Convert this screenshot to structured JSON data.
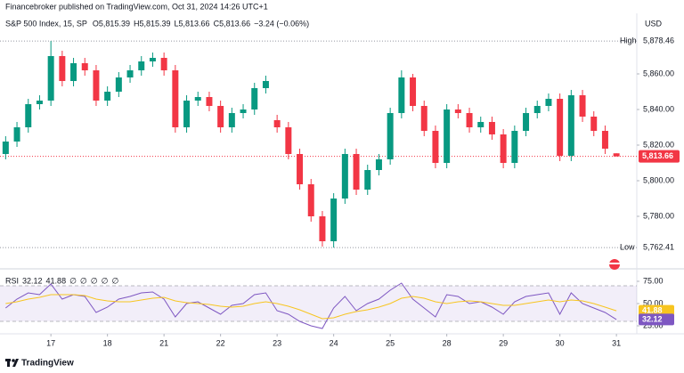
{
  "header": {
    "publisher": "Financebroker published on TradingView.com, Oct 31, 2024 14:26 UTC+1",
    "symbol": "S&P 500 Index, 15, SP",
    "ohlc": [
      {
        "key": "O",
        "text": "5,815.39"
      },
      {
        "key": "H",
        "text": "5,815.39"
      },
      {
        "key": "L",
        "text": "5,813.66"
      },
      {
        "key": "C",
        "text": "5,813.66"
      }
    ],
    "change": "−3.24 (−0.06%)"
  },
  "footer": {
    "brand": "TradingView"
  },
  "chart_data": [
    {
      "type": "candlestick",
      "currency": "USD",
      "up_color": "#089981",
      "down_color": "#f23645",
      "x": [
        0.2,
        0.4,
        0.6,
        0.8,
        1.0,
        1.2,
        1.4,
        1.6,
        1.8,
        2.0,
        2.2,
        2.4,
        2.6,
        2.8,
        3.0,
        3.2,
        3.4,
        3.6,
        3.8,
        4.0,
        4.2,
        4.4,
        4.6,
        4.8,
        5.0,
        5.2,
        5.4,
        5.6,
        5.8,
        6.0,
        6.2,
        6.4,
        6.6,
        6.8,
        7.0,
        7.2,
        7.4,
        7.6,
        7.8,
        8.0,
        8.2,
        8.4,
        8.6,
        8.8,
        9.0,
        9.2,
        9.4,
        9.6,
        9.8,
        10.0,
        10.2,
        10.4,
        10.6,
        10.8,
        11.0
      ],
      "open": [
        5815,
        5822,
        5830,
        5843,
        5845,
        5870,
        5856,
        5866,
        5862,
        5845,
        5850,
        5858,
        5862,
        5867,
        5869,
        5862,
        5830,
        5845,
        5847,
        5842,
        5830,
        5838,
        5840,
        5852,
        5834,
        5830,
        5815,
        5798,
        5780,
        5766,
        5790,
        5815,
        5795,
        5806,
        5812,
        5838,
        5858,
        5842,
        5828,
        5810,
        5840,
        5838,
        5830,
        5833,
        5826,
        5810,
        5828,
        5838,
        5842,
        5846,
        5814,
        5848,
        5836,
        5828,
        5815.39
      ],
      "high": [
        5825,
        5833,
        5846,
        5848,
        5878.46,
        5873,
        5869,
        5869,
        5865,
        5853,
        5861,
        5865,
        5870,
        5872,
        5872,
        5865,
        5848,
        5850,
        5850,
        5845,
        5841,
        5843,
        5855,
        5859,
        5837,
        5833,
        5818,
        5801,
        5783,
        5793,
        5818,
        5818,
        5809,
        5815,
        5841,
        5862,
        5860,
        5845,
        5831,
        5843,
        5843,
        5841,
        5836,
        5836,
        5829,
        5831,
        5841,
        5845,
        5849,
        5849,
        5851,
        5851,
        5839,
        5831,
        5815.39
      ],
      "low": [
        5812,
        5819,
        5827,
        5840,
        5842,
        5853,
        5853,
        5859,
        5842,
        5842,
        5847,
        5855,
        5859,
        5864,
        5859,
        5827,
        5827,
        5842,
        5839,
        5827,
        5827,
        5835,
        5837,
        5849,
        5827,
        5812,
        5795,
        5777,
        5763,
        5762.41,
        5787,
        5792,
        5792,
        5803,
        5809,
        5835,
        5839,
        5825,
        5807,
        5807,
        5835,
        5827,
        5827,
        5823,
        5807,
        5807,
        5825,
        5835,
        5839,
        5811,
        5811,
        5833,
        5825,
        5815,
        5813.66
      ],
      "close": [
        5822,
        5830,
        5843,
        5845,
        5870,
        5856,
        5866,
        5862,
        5845,
        5850,
        5858,
        5862,
        5867,
        5869,
        5862,
        5830,
        5845,
        5847,
        5842,
        5830,
        5838,
        5840,
        5852,
        5856,
        5830,
        5815,
        5798,
        5780,
        5766,
        5790,
        5815,
        5795,
        5806,
        5812,
        5838,
        5858,
        5842,
        5828,
        5810,
        5840,
        5838,
        5830,
        5833,
        5826,
        5810,
        5828,
        5838,
        5842,
        5846,
        5814,
        5848,
        5836,
        5828,
        5818,
        5813.66
      ],
      "xlim": [
        0.1,
        11.36
      ],
      "xticks": [
        {
          "value": 1,
          "label": "17"
        },
        {
          "value": 2,
          "label": "18"
        },
        {
          "value": 3,
          "label": "21"
        },
        {
          "value": 4,
          "label": "22"
        },
        {
          "value": 5,
          "label": "23"
        },
        {
          "value": 6,
          "label": "24"
        },
        {
          "value": 7,
          "label": "25"
        },
        {
          "value": 8,
          "label": "28"
        },
        {
          "value": 9,
          "label": "29"
        },
        {
          "value": 10,
          "label": "30"
        },
        {
          "value": 11,
          "label": "31"
        }
      ],
      "ylim": [
        5752,
        5894
      ],
      "yticks": [
        {
          "value": 5780,
          "label": "5,780.00"
        },
        {
          "value": 5800,
          "label": "5,800.00"
        },
        {
          "value": 5820,
          "label": "5,820.00"
        },
        {
          "value": 5840,
          "label": "5,840.00"
        },
        {
          "value": 5860,
          "label": "5,860.00"
        }
      ],
      "annotations": [
        {
          "text": "High",
          "value": 5878.46,
          "label": "5,878.46"
        },
        {
          "text": "Low",
          "value": 5762.41,
          "label": "5,762.41"
        }
      ],
      "last_price": {
        "value": 5813.66,
        "label": "5,813.66"
      }
    },
    {
      "type": "line",
      "band": [
        30,
        70
      ],
      "band_color": "#7e57c2",
      "series": [
        {
          "name": "RSI",
          "color": "#7e57c2",
          "values": [
            45,
            55,
            62,
            60,
            72,
            55,
            60,
            58,
            40,
            46,
            55,
            58,
            62,
            63,
            55,
            35,
            50,
            52,
            45,
            38,
            48,
            50,
            60,
            62,
            42,
            38,
            30,
            25,
            22,
            45,
            58,
            42,
            50,
            55,
            65,
            73,
            55,
            45,
            35,
            60,
            58,
            50,
            52,
            46,
            38,
            52,
            58,
            60,
            62,
            38,
            62,
            50,
            45,
            40,
            32.12
          ]
        },
        {
          "color": "#f7c520",
          "values": [
            50,
            52,
            55,
            57,
            60,
            60,
            60,
            59,
            55,
            53,
            52,
            52,
            54,
            56,
            57,
            53,
            51,
            50,
            49,
            47,
            46,
            47,
            50,
            52,
            50,
            47,
            43,
            38,
            33,
            34,
            38,
            41,
            43,
            46,
            50,
            56,
            58,
            56,
            52,
            50,
            52,
            53,
            52,
            50,
            48,
            48,
            50,
            52,
            54,
            52,
            54,
            53,
            50,
            46,
            41.88
          ]
        }
      ],
      "legend_extras": [
        "∅",
        "∅",
        "∅",
        "∅",
        "∅"
      ],
      "ylim": [
        21,
        86
      ],
      "yticks": [
        {
          "value": 25,
          "label": "25.00"
        },
        {
          "value": 50,
          "label": "50.00"
        },
        {
          "value": 75,
          "label": "75.00"
        }
      ]
    }
  ]
}
